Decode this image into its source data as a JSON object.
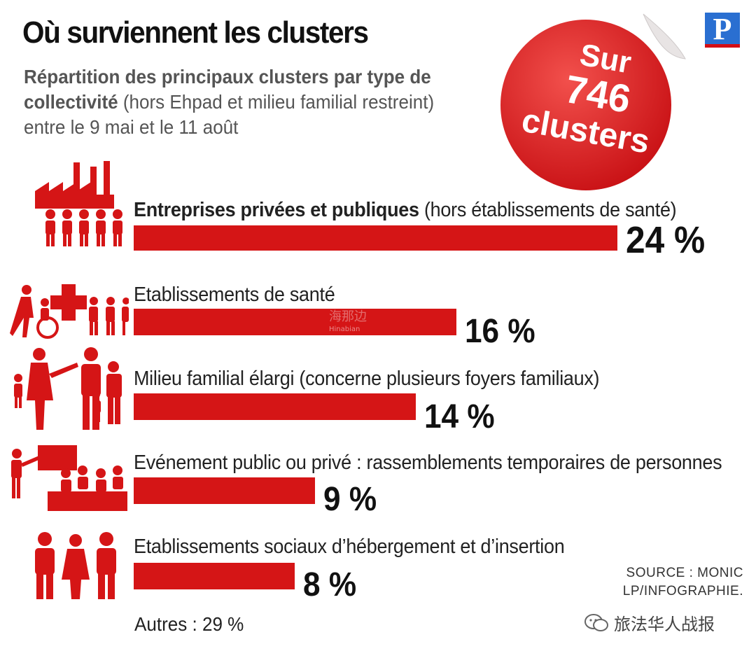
{
  "header": {
    "title": "Où surviennent les clusters",
    "subtitle_bold": "Répartition des principaux clusters par type de collectivité",
    "subtitle_rest": " (hors Ehpad et milieu familial restreint) entre le 9 mai et le 11 août",
    "logo_letter": "P"
  },
  "sticker": {
    "line1": "Sur",
    "line2": "746",
    "line3": "clusters"
  },
  "chart_data": {
    "type": "bar",
    "orientation": "horizontal",
    "title": "Où surviennent les clusters",
    "categories": [
      "Entreprises privées et publiques (hors établissements de santé)",
      "Etablissements de santé",
      "Milieu familial élargi (concerne plusieurs foyers familiaux)",
      "Evénement public ou privé : rassemblements temporaires de personnes",
      "Etablissements sociaux d’hébergement et d’insertion"
    ],
    "values": [
      24,
      16,
      14,
      9,
      8
    ],
    "unit": "%",
    "other": {
      "label": "Autres",
      "value": 29
    }
  },
  "rows": [
    {
      "label_bold": "Entreprises privées et publiques",
      "label_rest": " (hors établissements de santé)",
      "pct_text": "24 %",
      "icon": "factory-workers-icon"
    },
    {
      "label_bold": "",
      "label_rest": "Etablissements de santé",
      "pct_text": "16 %",
      "icon": "healthcare-icon"
    },
    {
      "label_bold": "",
      "label_rest": "Milieu familial élargi (concerne plusieurs foyers familiaux)",
      "pct_text": "14 %",
      "icon": "family-icon"
    },
    {
      "label_bold": "",
      "label_rest": "Evénement public ou privé : rassemblements temporaires de personnes",
      "pct_text": "9 %",
      "icon": "event-audience-icon"
    },
    {
      "label_bold": "",
      "label_rest": "Etablissements sociaux d’hébergement et d’insertion",
      "pct_text": "8 %",
      "icon": "people-group-icon"
    }
  ],
  "footer": {
    "autres": "Autres : 29 %",
    "source_line1": "SOURCE : MONIC",
    "source_line2": "LP/INFOGRAPHIE.",
    "wechat_account": "旅法华人战报",
    "watermark_cn": "海那边",
    "watermark_en": "Hinabian"
  },
  "colors": {
    "accent": "#d51516",
    "text": "#111111",
    "muted": "#555555",
    "logo_blue": "#2a6fd1"
  }
}
